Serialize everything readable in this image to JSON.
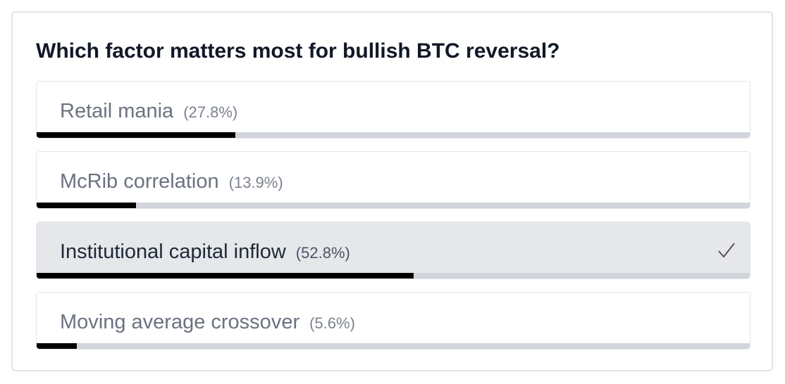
{
  "poll": {
    "question": "Which factor matters most for bullish BTC reversal?",
    "options": [
      {
        "label": "Retail mania",
        "percent": 27.8,
        "percent_label": "(27.8%)",
        "selected": false
      },
      {
        "label": "McRib correlation",
        "percent": 13.9,
        "percent_label": "(13.9%)",
        "selected": false
      },
      {
        "label": "Institutional capital inflow",
        "percent": 52.8,
        "percent_label": "(52.8%)",
        "selected": true
      },
      {
        "label": "Moving average crossover",
        "percent": 5.6,
        "percent_label": "(5.6%)",
        "selected": false
      }
    ]
  }
}
